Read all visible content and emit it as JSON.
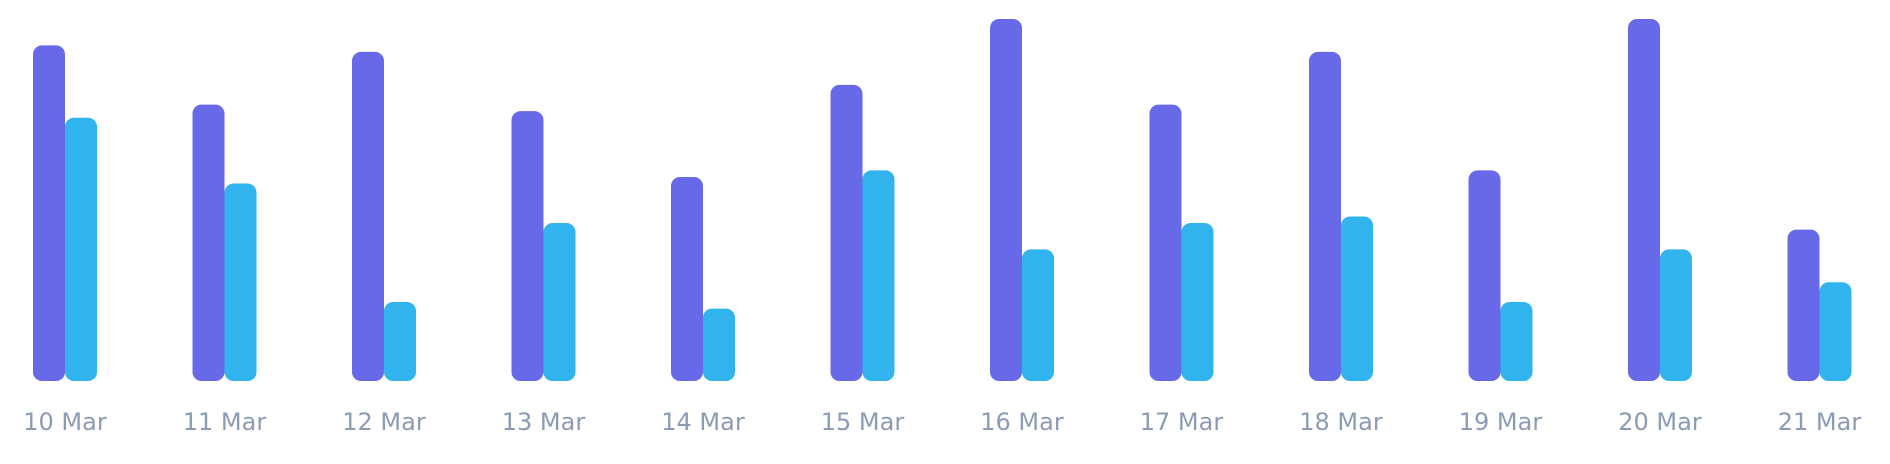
{
  "chart_data": {
    "type": "bar",
    "categories": [
      "10 Mar",
      "11 Mar",
      "12 Mar",
      "13 Mar",
      "14 Mar",
      "15 Mar",
      "16 Mar",
      "17 Mar",
      "18 Mar",
      "19 Mar",
      "20 Mar",
      "21 Mar"
    ],
    "series": [
      {
        "color": "#6769e9",
        "values": [
          51,
          42,
          50,
          41,
          31,
          45,
          55,
          42,
          50,
          32,
          55,
          23
        ]
      },
      {
        "color": "#31b3ed",
        "values": [
          40,
          30,
          12,
          24,
          11,
          32,
          20,
          24,
          25,
          12,
          20,
          15
        ]
      }
    ],
    "ylim": [
      0,
      55
    ],
    "grid": false,
    "legend": "none",
    "colors": {
      "tick_label": "#8c9bb5",
      "background": "#ffffff"
    }
  }
}
